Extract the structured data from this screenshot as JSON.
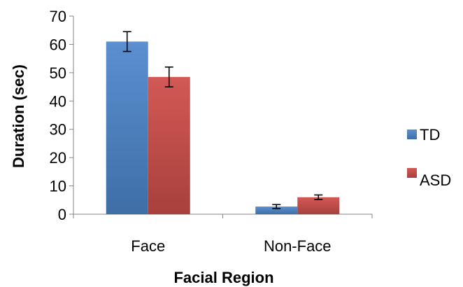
{
  "chart_data": {
    "type": "bar",
    "title": "",
    "xlabel": "Facial Region",
    "ylabel": "Duration (sec)",
    "categories": [
      "Face",
      "Non-Face"
    ],
    "ylim": [
      0,
      70
    ],
    "yticks": [
      0,
      10,
      20,
      30,
      40,
      50,
      60,
      70
    ],
    "grid": false,
    "legend_position": "right",
    "series": [
      {
        "name": "TD",
        "color": "#4a7ebb",
        "values": [
          61.0,
          2.7
        ],
        "error_low": [
          57.5,
          2.0
        ],
        "error_high": [
          64.5,
          3.4
        ]
      },
      {
        "name": "ASD",
        "color": "#be4b48",
        "values": [
          48.5,
          6.0
        ],
        "error_low": [
          45.0,
          5.2
        ],
        "error_high": [
          52.0,
          6.8
        ]
      }
    ]
  }
}
